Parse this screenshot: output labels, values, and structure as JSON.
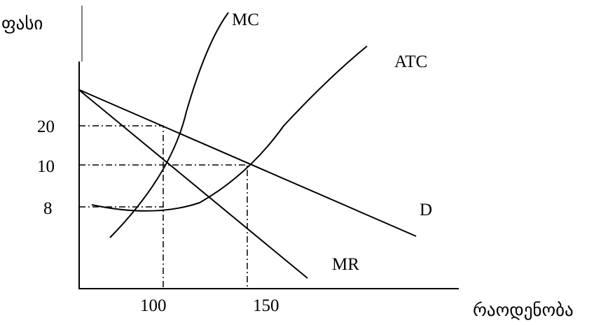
{
  "y_axis_label": "ფასი",
  "x_axis_label": "რაოდენობა",
  "y_ticks": [
    "20",
    "10",
    "8"
  ],
  "x_ticks": [
    "100",
    "150"
  ],
  "curves": {
    "mc": "MC",
    "atc": "ATC",
    "d": "D",
    "mr": "MR"
  }
}
